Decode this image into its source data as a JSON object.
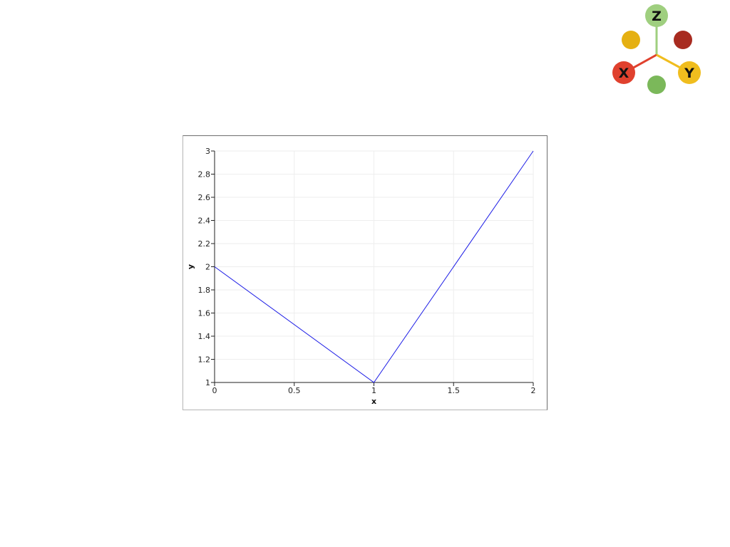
{
  "orientation_widget": {
    "axes": [
      {
        "label": "X",
        "color": "#e0412e"
      },
      {
        "label": "Y",
        "color": "#f0bd1e"
      },
      {
        "label": "Z",
        "color": "#9fcf7f"
      }
    ],
    "negative_axes_colors": [
      "#a82b20",
      "#e5b012",
      "#7bb85a"
    ]
  },
  "colors": {
    "line": "#1f1fe6",
    "grid": "#eeeeee",
    "axis": "#222222"
  },
  "chart_data": {
    "type": "line",
    "xlabel": "x",
    "ylabel": "y",
    "xlim": [
      0,
      2
    ],
    "ylim": [
      1,
      3
    ],
    "xticks": [
      0,
      0.5,
      1,
      1.5,
      2
    ],
    "yticks": [
      1,
      1.2,
      1.4,
      1.6,
      1.8,
      2,
      2.2,
      2.4,
      2.6,
      2.8,
      3
    ],
    "xtick_labels": [
      "0",
      "0.5",
      "1",
      "1.5",
      "2"
    ],
    "ytick_labels": [
      "1",
      "1.2",
      "1.4",
      "1.6",
      "1.8",
      "2",
      "2.2",
      "2.4",
      "2.6",
      "2.8",
      "3"
    ],
    "grid": true,
    "series": [
      {
        "x": [
          0,
          1,
          2
        ],
        "y": [
          2,
          1,
          3
        ],
        "color": "#1f1fe6"
      }
    ]
  }
}
